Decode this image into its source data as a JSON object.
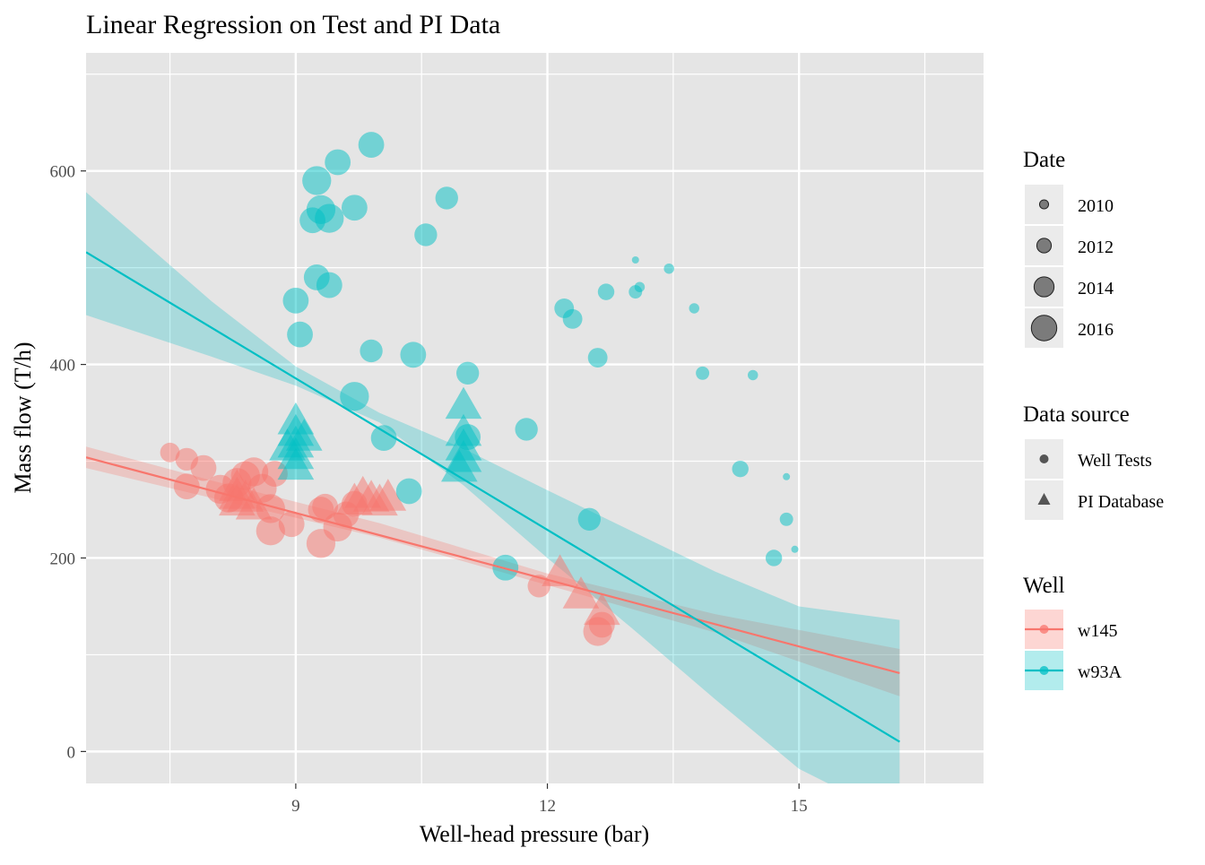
{
  "colors": {
    "panel_bg": "#E5E5E5",
    "grid": "#FFFFFF",
    "w145": "#F8766D",
    "w93A": "#00BFC4",
    "w145_ribbon": "#F8766D",
    "w93A_ribbon": "#00BFC4",
    "legend_key_bg": "#EBEBEB",
    "neutral_point": "#555555"
  },
  "chart_data": {
    "type": "scatter",
    "title": "Linear Regression on Test and PI Data",
    "xlabel": "Well-head pressure (bar)",
    "ylabel": "Mass flow (T/h)",
    "xlim": [
      6.5,
      17.2
    ],
    "ylim": [
      -33,
      722
    ],
    "x_ticks": [
      9,
      12,
      15
    ],
    "x_tick_labels": [
      "9",
      "12",
      "15"
    ],
    "x_minor": [
      7.5,
      10.5,
      13.5,
      16.5
    ],
    "y_ticks": [
      0,
      200,
      400,
      600
    ],
    "y_tick_labels": [
      "0",
      "200",
      "400",
      "600"
    ],
    "y_minor": [
      100,
      300,
      500,
      700
    ],
    "grid": true,
    "legend_position": "right",
    "legend": {
      "date": {
        "title": "Date",
        "items": [
          {
            "label": "2010",
            "size": 2010
          },
          {
            "label": "2012",
            "size": 2012
          },
          {
            "label": "2014",
            "size": 2014
          },
          {
            "label": "2016",
            "size": 2016
          }
        ]
      },
      "source": {
        "title": "Data source",
        "items": [
          {
            "label": "Well Tests",
            "shape": "circle"
          },
          {
            "label": "PI Database",
            "shape": "triangle"
          }
        ]
      },
      "well": {
        "title": "Well",
        "items": [
          {
            "label": "w145",
            "color_key": "w145"
          },
          {
            "label": "w93A",
            "color_key": "w93A"
          }
        ]
      }
    },
    "size_scale": {
      "min_date": 2009,
      "max_date": 2016.5
    },
    "regression_lines": [
      {
        "well": "w145",
        "x": [
          6.5,
          16.2
        ],
        "y": [
          304,
          81
        ],
        "ribbon": {
          "x": [
            6.5,
            8.0,
            10.0,
            12.0,
            14.0,
            16.2
          ],
          "lower": [
            293,
            262,
            221,
            172,
            123,
            57
          ],
          "upper": [
            315,
            280,
            236,
            184,
            142,
            106
          ]
        }
      },
      {
        "well": "w93A",
        "x": [
          6.5,
          16.2
        ],
        "y": [
          516,
          10
        ],
        "ribbon": {
          "x": [
            6.5,
            8.0,
            9.0,
            10.0,
            11.0,
            12.0,
            13.0,
            14.0,
            15.0,
            16.2
          ],
          "lower": [
            451,
            408,
            378,
            340,
            275,
            200,
            128,
            54,
            -18,
            -70
          ],
          "upper": [
            578,
            465,
            398,
            350,
            313,
            270,
            228,
            186,
            150,
            136
          ]
        }
      }
    ],
    "series": [
      {
        "name": "w145",
        "source": "Well Tests",
        "points": [
          [
            7.5,
            309,
            2013
          ],
          [
            7.7,
            302,
            2014
          ],
          [
            7.9,
            293,
            2015
          ],
          [
            7.7,
            274,
            2015
          ],
          [
            8.1,
            271,
            2016
          ],
          [
            8.2,
            262,
            2016
          ],
          [
            8.3,
            278,
            2016
          ],
          [
            8.4,
            285,
            2016
          ],
          [
            8.5,
            289,
            2016
          ],
          [
            8.6,
            272,
            2016
          ],
          [
            8.7,
            251,
            2016
          ],
          [
            8.7,
            228,
            2016
          ],
          [
            8.75,
            287,
            2015
          ],
          [
            8.95,
            235,
            2015
          ],
          [
            9.3,
            250,
            2015
          ],
          [
            9.35,
            253,
            2015
          ],
          [
            9.3,
            215,
            2016
          ],
          [
            9.5,
            232,
            2016
          ],
          [
            9.6,
            245,
            2015
          ],
          [
            9.7,
            256,
            2015
          ],
          [
            11.9,
            171,
            2014
          ],
          [
            12.6,
            124,
            2016
          ],
          [
            12.65,
            131,
            2015
          ]
        ]
      },
      {
        "name": "w145",
        "source": "PI Database",
        "points": [
          [
            8.3,
            273,
            2016
          ],
          [
            8.3,
            265,
            2016
          ],
          [
            8.3,
            258,
            2016
          ],
          [
            8.4,
            262,
            2016
          ],
          [
            8.5,
            254,
            2016
          ],
          [
            9.7,
            259,
            2016
          ],
          [
            9.8,
            266,
            2016
          ],
          [
            9.9,
            262,
            2016
          ],
          [
            10.0,
            258,
            2016
          ],
          [
            10.1,
            263,
            2016
          ],
          [
            12.15,
            185,
            2016
          ],
          [
            12.4,
            162,
            2016
          ],
          [
            12.65,
            145,
            2016
          ]
        ]
      },
      {
        "name": "w93A",
        "source": "Well Tests",
        "points": [
          [
            9.25,
            590,
            2016
          ],
          [
            9.5,
            609,
            2015
          ],
          [
            9.9,
            627,
            2015
          ],
          [
            10.8,
            572,
            2014
          ],
          [
            9.3,
            560,
            2016
          ],
          [
            9.2,
            549,
            2015
          ],
          [
            9.4,
            551,
            2016
          ],
          [
            9.7,
            562,
            2015
          ],
          [
            10.55,
            534,
            2014
          ],
          [
            9.25,
            490,
            2015
          ],
          [
            9.4,
            482,
            2015
          ],
          [
            9.0,
            466,
            2015
          ],
          [
            9.05,
            431,
            2015
          ],
          [
            9.9,
            414,
            2014
          ],
          [
            10.4,
            410,
            2015
          ],
          [
            11.05,
            391,
            2014
          ],
          [
            9.7,
            367,
            2016
          ],
          [
            10.05,
            324,
            2015
          ],
          [
            11.05,
            325,
            2015
          ],
          [
            11.75,
            333,
            2014
          ],
          [
            10.35,
            269,
            2015
          ],
          [
            12.5,
            240,
            2014
          ],
          [
            11.5,
            190,
            2015
          ],
          [
            12.2,
            458,
            2013
          ],
          [
            12.3,
            447,
            2013
          ],
          [
            12.7,
            475,
            2012
          ],
          [
            12.6,
            407,
            2013
          ],
          [
            13.05,
            475,
            2011
          ],
          [
            13.1,
            480,
            2010
          ],
          [
            13.05,
            508,
            2009
          ],
          [
            13.45,
            499,
            2010
          ],
          [
            13.75,
            458,
            2010
          ],
          [
            13.85,
            391,
            2011
          ],
          [
            14.45,
            389,
            2010
          ],
          [
            14.3,
            292,
            2012
          ],
          [
            14.85,
            284,
            2009
          ],
          [
            14.85,
            240,
            2011
          ],
          [
            14.7,
            200,
            2012
          ],
          [
            14.95,
            209,
            2009
          ]
        ]
      },
      {
        "name": "w93A",
        "source": "PI Database",
        "points": [
          [
            9.0,
            342,
            2016
          ],
          [
            9.0,
            330,
            2016
          ],
          [
            9.0,
            318,
            2016
          ],
          [
            9.0,
            306,
            2016
          ],
          [
            8.9,
            315,
            2016
          ],
          [
            9.1,
            325,
            2016
          ],
          [
            9.0,
            295,
            2016
          ],
          [
            11.0,
            358,
            2016
          ],
          [
            11.0,
            330,
            2016
          ],
          [
            11.0,
            315,
            2016
          ],
          [
            11.0,
            303,
            2016
          ],
          [
            10.95,
            293,
            2016
          ]
        ]
      }
    ]
  }
}
